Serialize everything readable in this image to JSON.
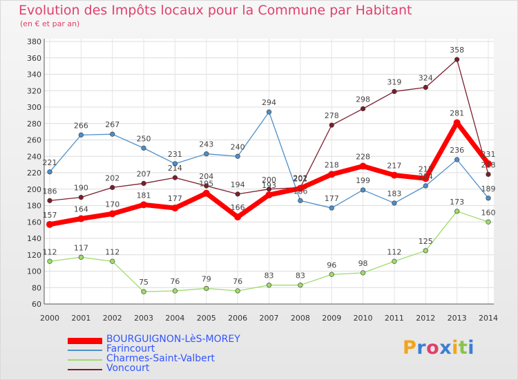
{
  "title": "Evolution des Impôts locaux pour la Commune par Habitant",
  "subtitle": "(en € et par an)",
  "logo_text": "Proxiti",
  "chart_data": {
    "type": "line",
    "title": "Evolution des Impôts locaux pour la Commune par Habitant",
    "subtitle": "(en € et par an)",
    "x": [
      2000,
      2001,
      2002,
      2003,
      2004,
      2005,
      2006,
      2007,
      2008,
      2009,
      2010,
      2011,
      2012,
      2013,
      2014
    ],
    "ylim": [
      60,
      380
    ],
    "ytick_step": 20,
    "grid": true,
    "legend_position": "bottom-left",
    "series": [
      {
        "name": "BOURGUIGNON-LèS-MOREY",
        "color": "#ff0000",
        "values": [
          157,
          164,
          170,
          181,
          177,
          195,
          166,
          193,
          201,
          218,
          228,
          217,
          213,
          281,
          231
        ],
        "labels": [
          "157",
          "164",
          "170",
          "181",
          "177",
          "195",
          "166",
          "193",
          "201",
          "218",
          "228",
          "217",
          "213",
          "281",
          "231"
        ]
      },
      {
        "name": "Farincourt",
        "color": "#4d8fc8",
        "values": [
          221,
          266,
          267,
          250,
          231,
          243,
          240,
          294,
          186,
          177,
          199,
          183,
          204,
          236,
          189
        ],
        "labels": [
          "221",
          "266",
          "267",
          "250",
          "231",
          "243",
          "240",
          "294",
          "186",
          "177",
          "199",
          "183",
          "204",
          "236",
          "189"
        ]
      },
      {
        "name": "Charmes-Saint-Valbert",
        "color": "#9edc6a",
        "values": [
          112,
          117,
          112,
          75,
          76,
          79,
          76,
          83,
          83,
          96,
          98,
          112,
          125,
          173,
          160
        ],
        "labels": [
          "112",
          "117",
          "112",
          "75",
          "76",
          "79",
          "76",
          "83",
          "83",
          "96",
          "98",
          "112",
          "125",
          "173",
          "160"
        ]
      },
      {
        "name": "Voncourt",
        "color": "#7b1e2b",
        "values": [
          186,
          190,
          202,
          207,
          214,
          204,
          194,
          200,
          202,
          278,
          298,
          319,
          324,
          358,
          218
        ],
        "labels": [
          "186",
          "190",
          "202",
          "207",
          "214",
          "204",
          "194",
          "200",
          "202",
          "278",
          "298",
          "319",
          "324",
          "358",
          "218"
        ]
      }
    ]
  }
}
